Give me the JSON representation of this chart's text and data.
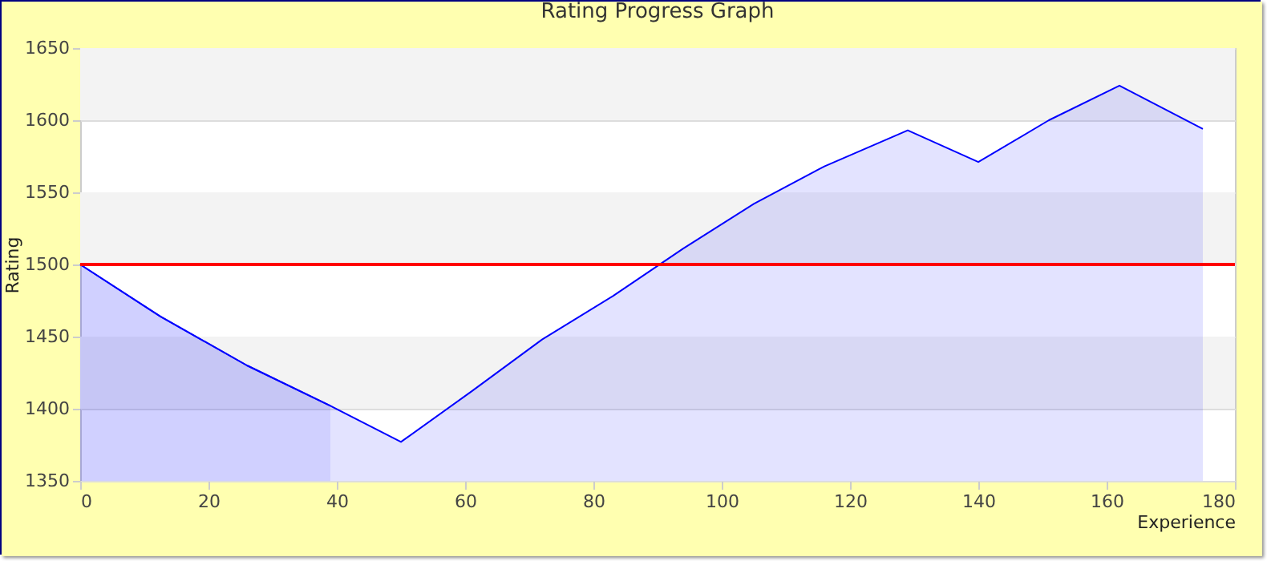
{
  "chart_data": {
    "type": "area",
    "title": "Rating Progress Graph",
    "xlabel": "Experience",
    "ylabel": "Rating",
    "series": [
      {
        "color": "#0000ff",
        "x": [
          0,
          12.5,
          26,
          39,
          50,
          61,
          72,
          83,
          94,
          105,
          116,
          129,
          140,
          151,
          162,
          175
        ],
        "values": [
          1500,
          1464,
          1430,
          1402,
          1377,
          1412,
          1448,
          1478,
          1511,
          1542,
          1568,
          1593,
          1571,
          1600,
          1624,
          1594
        ]
      },
      {
        "color": "#3333ff",
        "x": [
          0,
          12.5,
          26,
          39
        ],
        "values": [
          1500,
          1464,
          1430,
          1402
        ]
      }
    ],
    "xlim": [
      0,
      180
    ],
    "xticks": [
      0,
      20,
      40,
      60,
      80,
      100,
      120,
      140,
      160,
      180
    ],
    "ylim": [
      1350,
      1650
    ],
    "yticks": [
      1350,
      1400,
      1450,
      1500,
      1550,
      1600,
      1650
    ],
    "grid": "y",
    "ref_lines": [
      {
        "axis": "y",
        "value": 1500,
        "color": "#ff0000"
      }
    ],
    "bands": [
      {
        "axis": "y",
        "from": 1400,
        "to": 1450,
        "color": "#f3f3f3"
      },
      {
        "axis": "y",
        "from": 1500,
        "to": 1550,
        "color": "#f3f3f3"
      },
      {
        "axis": "y",
        "from": 1600,
        "to": 1650,
        "color": "#f3f3f3"
      }
    ]
  }
}
